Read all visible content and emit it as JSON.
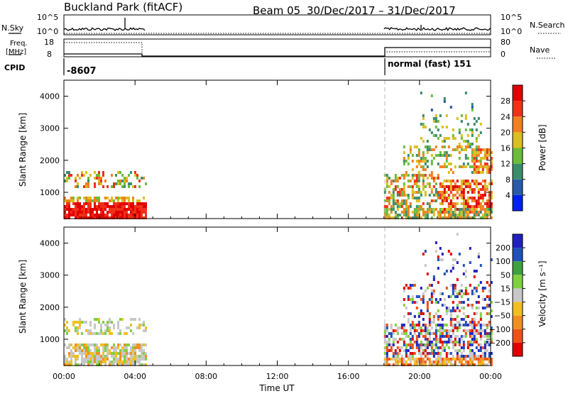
{
  "header": {
    "station": "Buckland Park (fitACF)",
    "beam": "Beam 05",
    "dates": "30/Dec/2017 – 31/Dec/2017"
  },
  "status": {
    "nsky_label": "N.Sky",
    "nsky_ticks": [
      "10^5",
      "10^0"
    ],
    "nsearch_label": "N.Search",
    "nsearch_ticks": [
      "10^5",
      "10^0"
    ],
    "freq_label_1": "Freq.",
    "freq_label_2": "[MHz]",
    "freq_ticks": [
      "18",
      "8"
    ],
    "nave_label": "Nave",
    "nave_ticks": [
      "80",
      "0"
    ],
    "cpid_label": "CPID",
    "cpid_first": "-8607",
    "cpid_second": "normal (fast) 151"
  },
  "chart_data": [
    {
      "type": "heatmap",
      "title": "",
      "xlabel": "Time UT",
      "ylabel": "Slant Range [km]",
      "x_range_hours": [
        0,
        24
      ],
      "x_ticks": [
        "00:00",
        "04:00",
        "08:00",
        "12:00",
        "16:00",
        "20:00",
        "00:00"
      ],
      "ylim": [
        180,
        4500
      ],
      "y_ticks": [
        1000,
        2000,
        3000,
        4000
      ],
      "colorbar": {
        "label": "Power [dB]",
        "ticks": [
          "4",
          "8",
          "12",
          "16",
          "20",
          "24",
          "28"
        ],
        "colors": [
          "#0020f0",
          "#2a5aa8",
          "#3c8c6c",
          "#6cbc3c",
          "#d8c020",
          "#f08020",
          "#f03018",
          "#e00000"
        ]
      },
      "data_intervals_hours": [
        [
          0,
          4.6
        ],
        [
          18.0,
          24
        ]
      ]
    },
    {
      "type": "heatmap",
      "title": "",
      "xlabel": "Time UT",
      "ylabel": "Slant Range [km]",
      "x_range_hours": [
        0,
        24
      ],
      "x_ticks": [
        "00:00",
        "04:00",
        "08:00",
        "12:00",
        "16:00",
        "20:00",
        "00:00"
      ],
      "ylim": [
        180,
        4500
      ],
      "y_ticks": [
        1000,
        2000,
        3000,
        4000
      ],
      "colorbar": {
        "label": "Velocity [m s⁻¹]",
        "ticks": [
          "200",
          "100",
          "50",
          "15",
          "−15",
          "−50",
          "−100",
          "−200"
        ],
        "colors": [
          "#2020c0",
          "#2050b8",
          "#40a040",
          "#80d040",
          "#c8c8c8",
          "#f0c020",
          "#f09020",
          "#f05018",
          "#e00000"
        ]
      },
      "data_intervals_hours": [
        [
          0,
          4.6
        ],
        [
          18.0,
          24
        ]
      ]
    }
  ],
  "footer": {
    "time_label": "Time UT"
  }
}
